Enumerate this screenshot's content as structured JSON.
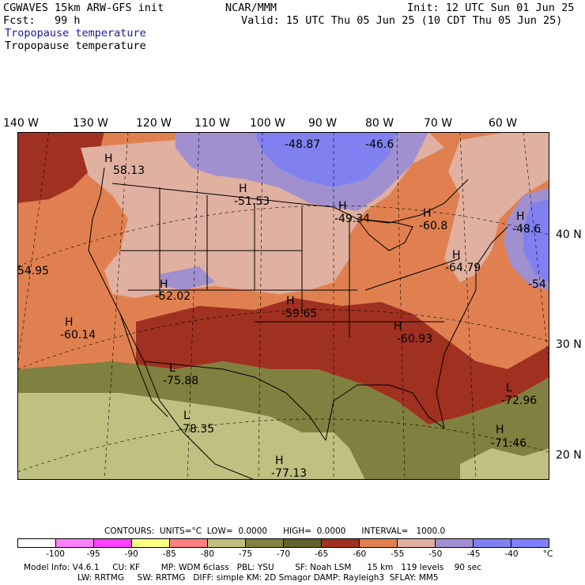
{
  "header": {
    "model": "CGWAVES 15km ARW-GFS init",
    "org": "NCAR/MMM",
    "init": "Init: 12 UTC Sun 01 Jun 25",
    "fcst": "Fcst:   99 h",
    "valid": "Valid: 15 UTC Thu 05 Jun 25 (10 CDT Thu 05 Jun 25)",
    "field_contour": "Tropopause temperature",
    "field_fill": "Tropopause temperature"
  },
  "longitudes": [
    "140 W",
    "130 W",
    "120 W",
    "110 W",
    "100 W",
    "90 W",
    "80 W",
    "70 W",
    "60 W"
  ],
  "latitudes": [
    "40 N",
    "30 N",
    "20 N"
  ],
  "extrema": [
    {
      "sym": "H",
      "val": "58.13"
    },
    {
      "sym": "",
      "val": "-48.87"
    },
    {
      "sym": "",
      "val": "-46.6"
    },
    {
      "sym": "H",
      "val": "-51.53"
    },
    {
      "sym": "H",
      "val": "-49.34"
    },
    {
      "sym": "H",
      "val": "-60.8"
    },
    {
      "sym": "H",
      "val": "-48.6"
    },
    {
      "sym": "",
      "val": "54.95"
    },
    {
      "sym": "H",
      "val": "-64.79"
    },
    {
      "sym": "",
      "val": "-54"
    },
    {
      "sym": "H",
      "val": "-52.02"
    },
    {
      "sym": "H",
      "val": "-59.65"
    },
    {
      "sym": "H",
      "val": "-60.14"
    },
    {
      "sym": "H",
      "val": "-60.93"
    },
    {
      "sym": "L",
      "val": "-75.88"
    },
    {
      "sym": "L",
      "val": "-72.96"
    },
    {
      "sym": "L",
      "val": "-78.35"
    },
    {
      "sym": "H",
      "val": "-71.46"
    },
    {
      "sym": "H",
      "val": "-77.13"
    }
  ],
  "contours": "CONTOURS:  UNITS=°C  LOW=  0.0000      HIGH=  0.0000      INTERVAL=   1000.0",
  "colorbar": {
    "colors": [
      "#ffffff",
      "#ff80ff",
      "#ff40ff",
      "#ffff80",
      "#ff8080",
      "#c0c080",
      "#808040",
      "#606030",
      "#a03020",
      "#e08050",
      "#e0b0a0",
      "#a090d0",
      "#8080f0",
      "#8080ff"
    ],
    "ticks": [
      "-100",
      "-95",
      "-90",
      "-85",
      "-80",
      "-75",
      "-70",
      "-65",
      "-60",
      "-55",
      "-50",
      "-45",
      "-40",
      "°C"
    ]
  },
  "model_info": {
    "line1": "Model Info: V4.6.1     CU: KF        MP: WDM 6class   PBL: YSU        SF: Noah LSM      15 km   119 levels    90 sec",
    "line2": "LW: RRTMG     SW: RRTMG   DIFF: simple KM: 2D Smagor DAMP: Rayleigh3  SFLAY: MM5"
  }
}
